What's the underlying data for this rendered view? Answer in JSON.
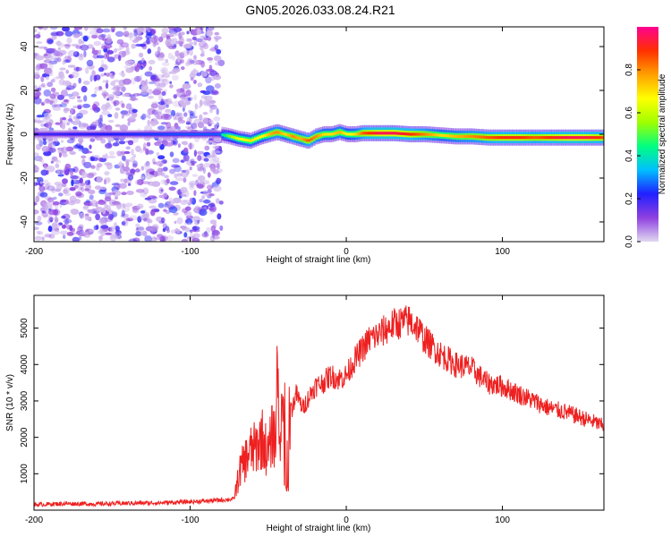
{
  "page_title": "GN05.2026.033.08.24.R21",
  "chart_data": [
    {
      "type": "heatmap",
      "xlabel": "Height of straight line (km)",
      "ylabel": "Frequency (Hz)",
      "xlim": [
        -200,
        165
      ],
      "ylim": [
        -49,
        49
      ],
      "x_ticks": [
        -200,
        -100,
        0,
        100
      ],
      "x_tick_labels": [
        "-200",
        "-100",
        "0",
        "100"
      ],
      "y_ticks": [
        -40,
        -20,
        0,
        20,
        40
      ],
      "y_tick_labels": [
        "-40",
        "-20",
        "0",
        "20",
        "40"
      ],
      "noise_region_x": [
        -200,
        -80
      ],
      "ridge": {
        "x": [
          -200,
          -150,
          -100,
          -82,
          -75,
          -70,
          -62,
          -55,
          -50,
          -45,
          -40,
          -35,
          -30,
          -25,
          -20,
          -15,
          -10,
          -5,
          0,
          5,
          10,
          20,
          30,
          40,
          50,
          60,
          70,
          80,
          90,
          100,
          110,
          120,
          130,
          140,
          150,
          160,
          165
        ],
        "freq": [
          0,
          0,
          0,
          0,
          -1,
          -2,
          -3,
          -1,
          0,
          1,
          0,
          -1,
          -2,
          -3,
          -1,
          0,
          0,
          1,
          0,
          0,
          0.5,
          0.5,
          0.5,
          0,
          0,
          -0.5,
          -1,
          -1,
          -1.5,
          -1.5,
          -1.5,
          -1.5,
          -1.5,
          -1.5,
          -1.5,
          -1.5,
          -1.5
        ],
        "amplitude": [
          0.25,
          0.3,
          0.35,
          0.35,
          0.55,
          0.65,
          0.7,
          0.65,
          0.75,
          0.8,
          0.7,
          0.8,
          0.75,
          0.85,
          0.8,
          0.7,
          0.7,
          0.75,
          0.65,
          0.7,
          0.85,
          0.95,
          0.95,
          0.9,
          0.8,
          0.7,
          0.75,
          0.8,
          0.85,
          0.9,
          0.9,
          0.85,
          0.9,
          0.95,
          0.95,
          0.9,
          0.85
        ]
      },
      "colorbar": {
        "label": "Normalized spectral amplitude",
        "range": [
          0,
          1
        ],
        "ticks": [
          0,
          0.2,
          0.4,
          0.6,
          0.8
        ],
        "tick_labels": [
          "0.0",
          "0.2",
          "0.4",
          "0.6",
          "0.8"
        ],
        "colors": [
          "#e0d8f0",
          "#9040e0",
          "#2020ff",
          "#00c0ff",
          "#00ff80",
          "#a0ff00",
          "#ffff00",
          "#ffa000",
          "#ff3000",
          "#ff0090"
        ]
      }
    },
    {
      "type": "line",
      "xlabel": "Height of straight line (km)",
      "ylabel": "SNR (10 * v/v)",
      "xlim": [
        -200,
        165
      ],
      "ylim": [
        0,
        5900
      ],
      "x_ticks": [
        -200,
        -100,
        0,
        100
      ],
      "x_tick_labels": [
        "-200",
        "-100",
        "0",
        "100"
      ],
      "y_ticks": [
        1000,
        2000,
        3000,
        4000,
        5000
      ],
      "y_tick_labels": [
        "1000",
        "2000",
        "3000",
        "4000",
        "5000"
      ],
      "line_color": "#ee2020",
      "series": [
        {
          "name": "SNR",
          "x": [
            -200,
            -180,
            -160,
            -140,
            -120,
            -100,
            -90,
            -80,
            -72,
            -68,
            -62,
            -58,
            -54,
            -50,
            -47,
            -44,
            -40,
            -36,
            -32,
            -28,
            -24,
            -20,
            -15,
            -10,
            -5,
            0,
            5,
            10,
            15,
            20,
            25,
            30,
            35,
            40,
            45,
            50,
            55,
            60,
            70,
            80,
            90,
            100,
            110,
            120,
            130,
            140,
            150,
            160,
            165
          ],
          "values": [
            150,
            180,
            170,
            190,
            200,
            230,
            250,
            280,
            300,
            1100,
            1600,
            1700,
            2000,
            1500,
            2200,
            1700,
            3000,
            2600,
            3200,
            2800,
            3100,
            3400,
            3500,
            3700,
            3600,
            3700,
            4100,
            4400,
            4700,
            4800,
            4950,
            5100,
            5150,
            5200,
            5050,
            4700,
            4500,
            4300,
            4000,
            3900,
            3500,
            3400,
            3200,
            3000,
            2800,
            2700,
            2550,
            2400,
            2300
          ]
        }
      ]
    }
  ]
}
